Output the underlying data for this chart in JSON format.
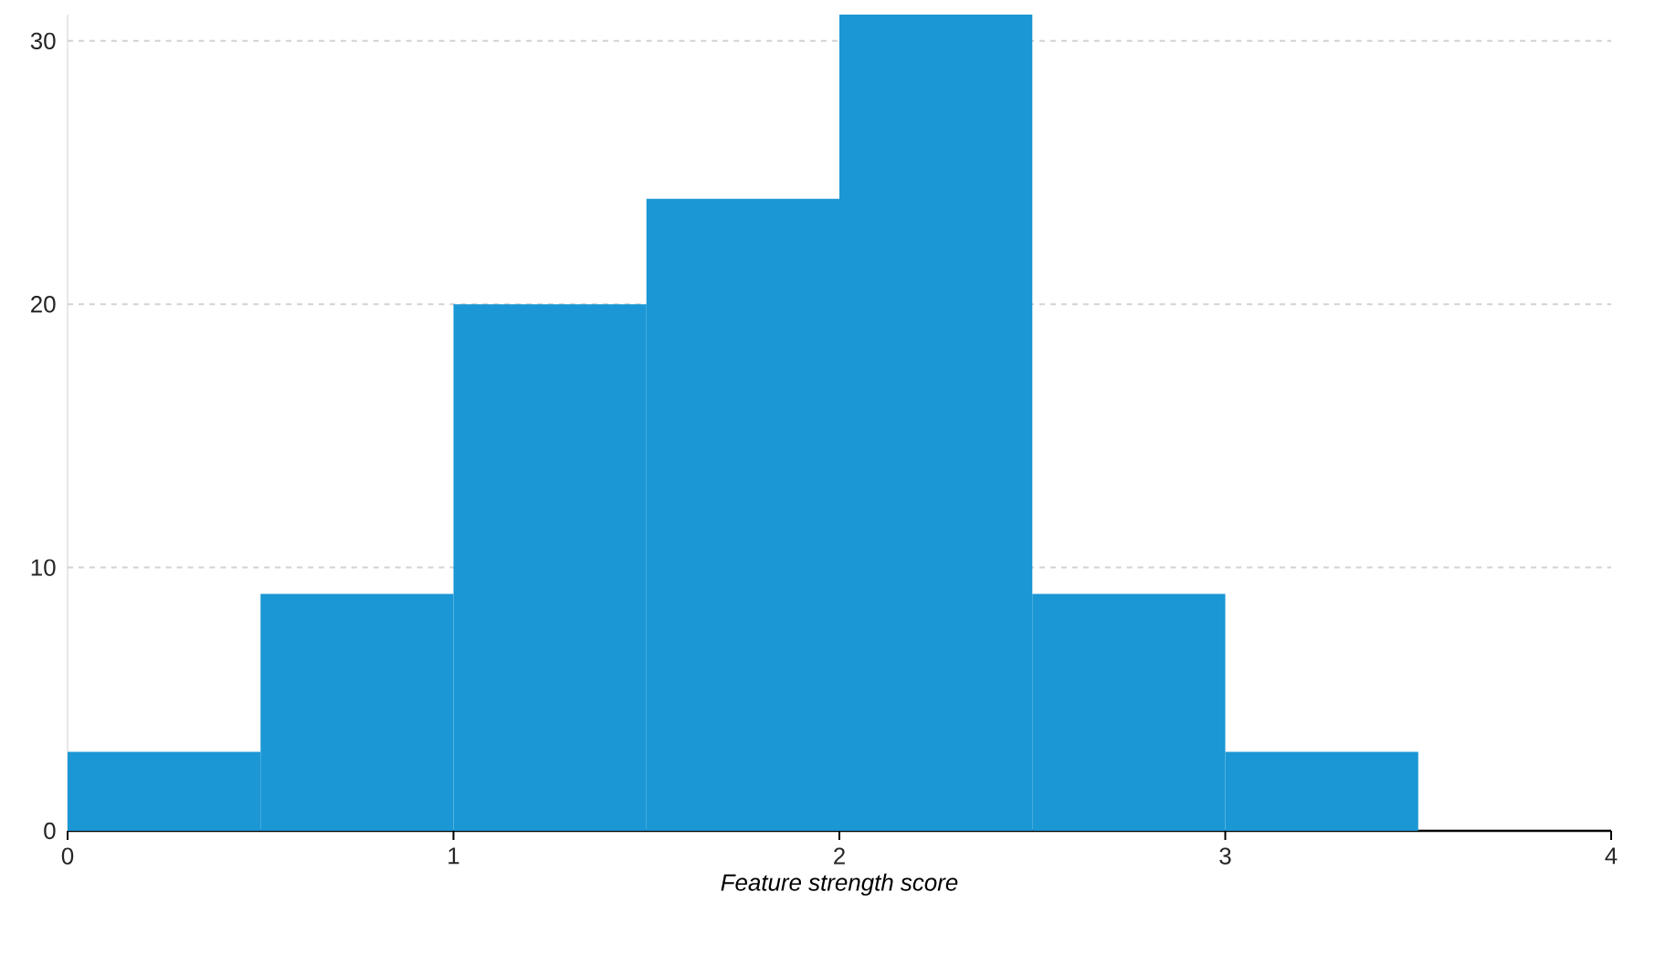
{
  "chart_data": {
    "type": "histogram",
    "xlabel": "Feature strength score",
    "bins": [
      0,
      0.5,
      1,
      1.5,
      2,
      2.5,
      3,
      3.5
    ],
    "values": [
      3,
      9,
      20,
      24,
      31,
      9,
      3
    ],
    "color": "#1a97d4",
    "xlim": [
      0,
      4
    ],
    "xticks": [
      0,
      1,
      2,
      3,
      4
    ],
    "ylim": [
      0,
      31
    ],
    "yticks": [
      0,
      10,
      20,
      30
    ],
    "grid": "y"
  }
}
